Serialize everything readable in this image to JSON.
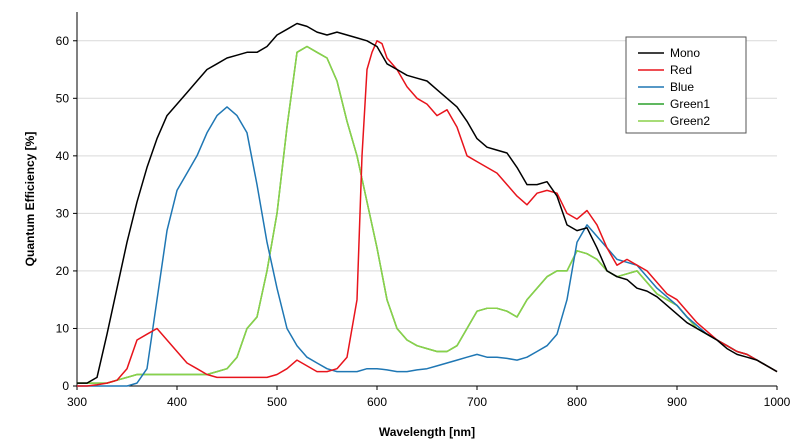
{
  "chart_data": {
    "type": "line",
    "title": "",
    "xlabel": "Wavelength [nm]",
    "ylabel": "Quantum Efficiency [%]",
    "xlim": [
      300,
      1000
    ],
    "ylim": [
      0,
      65
    ],
    "x_ticks": [
      300,
      400,
      500,
      600,
      700,
      800,
      900,
      1000
    ],
    "y_ticks": [
      0,
      10,
      20,
      30,
      40,
      50,
      60
    ],
    "grid": "horizontal",
    "legend_position": "top-right",
    "series": [
      {
        "name": "Mono",
        "color": "#000000",
        "x": [
          300,
          310,
          320,
          330,
          340,
          350,
          360,
          370,
          380,
          390,
          400,
          410,
          420,
          430,
          440,
          450,
          460,
          470,
          480,
          490,
          500,
          510,
          520,
          530,
          540,
          550,
          560,
          570,
          580,
          590,
          600,
          610,
          620,
          630,
          640,
          650,
          660,
          670,
          680,
          690,
          700,
          710,
          720,
          730,
          740,
          750,
          760,
          770,
          780,
          790,
          800,
          810,
          820,
          830,
          840,
          850,
          860,
          870,
          880,
          890,
          900,
          910,
          920,
          930,
          940,
          950,
          960,
          970,
          980,
          990,
          1000
        ],
        "values": [
          0.5,
          0.5,
          1.5,
          9,
          17,
          25,
          32,
          38,
          43,
          47,
          49,
          51,
          53,
          55,
          56,
          57,
          57.5,
          58,
          58,
          59,
          61,
          62,
          63,
          62.5,
          61.5,
          61,
          61.5,
          61,
          60.5,
          60,
          59,
          56,
          55,
          54,
          53.5,
          53,
          51.5,
          50,
          48.5,
          46,
          43,
          41.5,
          41,
          40.5,
          38,
          35,
          35,
          35.5,
          33,
          28,
          27,
          27.5,
          24,
          20,
          19,
          18.5,
          17,
          16.5,
          15.5,
          14,
          12.5,
          11,
          10,
          9,
          8,
          6.5,
          5.5,
          5,
          4.5,
          3.5,
          2.5
        ]
      },
      {
        "name": "Red",
        "color": "#e8141c",
        "x": [
          300,
          310,
          320,
          330,
          340,
          350,
          360,
          370,
          380,
          390,
          400,
          410,
          420,
          430,
          440,
          450,
          460,
          470,
          480,
          490,
          500,
          510,
          520,
          530,
          540,
          550,
          560,
          570,
          580,
          585,
          590,
          595,
          600,
          605,
          610,
          620,
          630,
          640,
          650,
          660,
          670,
          680,
          690,
          700,
          710,
          720,
          730,
          740,
          750,
          760,
          770,
          780,
          790,
          800,
          810,
          820,
          830,
          840,
          850,
          860,
          870,
          880,
          890,
          900,
          910,
          920,
          930,
          940,
          950,
          960,
          970,
          980,
          990,
          1000
        ],
        "values": [
          0,
          0,
          0.2,
          0.5,
          1,
          3,
          8,
          9,
          10,
          8,
          6,
          4,
          3,
          2,
          1.5,
          1.5,
          1.5,
          1.5,
          1.5,
          1.5,
          2,
          3,
          4.5,
          3.5,
          2.5,
          2.5,
          3,
          5,
          15,
          40,
          55,
          58,
          60,
          59.5,
          57,
          55,
          52,
          50,
          49,
          47,
          48,
          45,
          40,
          39,
          38,
          37,
          35,
          33,
          31.5,
          33.5,
          34,
          33.5,
          30,
          29,
          30.5,
          28,
          24,
          21,
          22,
          21,
          20,
          18,
          16,
          15,
          13,
          11,
          9.5,
          8,
          7,
          6,
          5.5,
          4.5,
          3.5,
          2.5
        ]
      },
      {
        "name": "Blue",
        "color": "#1f77b4",
        "x": [
          300,
          310,
          320,
          330,
          340,
          350,
          360,
          370,
          380,
          390,
          400,
          410,
          420,
          430,
          440,
          450,
          460,
          470,
          480,
          490,
          500,
          510,
          520,
          530,
          540,
          550,
          560,
          570,
          580,
          590,
          600,
          610,
          620,
          630,
          640,
          650,
          660,
          670,
          680,
          690,
          700,
          710,
          720,
          730,
          740,
          750,
          760,
          770,
          780,
          790,
          800,
          810,
          820,
          830,
          840,
          850,
          860,
          870,
          880,
          890,
          900,
          910,
          920,
          930,
          940,
          950,
          960,
          970,
          980,
          990,
          1000
        ],
        "values": [
          0,
          0,
          0,
          0,
          0,
          0,
          0.5,
          3,
          15,
          27,
          34,
          37,
          40,
          44,
          47,
          48.5,
          47,
          44,
          35,
          25,
          17,
          10,
          7,
          5,
          4,
          3,
          2.5,
          2.5,
          2.5,
          3,
          3,
          2.8,
          2.5,
          2.5,
          2.8,
          3,
          3.5,
          4,
          4.5,
          5,
          5.5,
          5,
          5,
          4.8,
          4.5,
          5,
          6,
          7,
          9,
          15,
          25,
          28,
          26,
          24,
          22,
          21.5,
          21,
          19,
          17,
          15.5,
          14,
          12,
          10.5,
          9,
          8,
          7,
          6,
          5.5,
          4.5,
          3.5,
          2.5
        ]
      },
      {
        "name": "Green1",
        "color": "#2ca02c",
        "x": [
          300,
          310,
          320,
          330,
          340,
          350,
          360,
          370,
          380,
          390,
          400,
          410,
          420,
          430,
          440,
          450,
          460,
          470,
          480,
          490,
          500,
          510,
          520,
          530,
          540,
          550,
          560,
          570,
          580,
          590,
          600,
          610,
          620,
          630,
          640,
          650,
          660,
          670,
          680,
          690,
          700,
          710,
          720,
          730,
          740,
          750,
          760,
          770,
          780,
          790,
          800,
          810,
          820,
          830,
          840,
          850,
          860,
          870,
          880,
          890,
          900,
          910,
          920,
          930,
          940,
          950,
          960,
          970,
          980,
          990,
          1000
        ],
        "values": [
          0.5,
          0.5,
          0.5,
          0.5,
          1,
          1.5,
          2,
          2,
          2,
          2,
          2,
          2,
          2,
          2,
          2.5,
          3,
          5,
          10,
          12,
          20,
          30,
          45,
          58,
          59,
          58,
          57,
          53,
          46,
          40,
          32,
          24,
          15,
          10,
          8,
          7,
          6.5,
          6,
          6,
          7,
          10,
          13,
          13.5,
          13.5,
          13,
          12,
          15,
          17,
          19,
          20,
          20,
          23.5,
          23,
          22,
          20,
          19,
          19.5,
          20,
          18,
          16,
          15,
          14,
          12,
          10,
          9,
          8,
          7,
          6,
          5.5,
          4.5,
          3.5,
          2.5
        ]
      },
      {
        "name": "Green2",
        "color": "#8ad14a",
        "x": [
          300,
          310,
          320,
          330,
          340,
          350,
          360,
          370,
          380,
          390,
          400,
          410,
          420,
          430,
          440,
          450,
          460,
          470,
          480,
          490,
          500,
          510,
          520,
          530,
          540,
          550,
          560,
          570,
          580,
          590,
          600,
          610,
          620,
          630,
          640,
          650,
          660,
          670,
          680,
          690,
          700,
          710,
          720,
          730,
          740,
          750,
          760,
          770,
          780,
          790,
          800,
          810,
          820,
          830,
          840,
          850,
          860,
          870,
          880,
          890,
          900,
          910,
          920,
          930,
          940,
          950,
          960,
          970,
          980,
          990,
          1000
        ],
        "values": [
          0.5,
          0.5,
          0.5,
          0.5,
          1,
          1.5,
          2,
          2,
          2,
          2,
          2,
          2,
          2,
          2,
          2.5,
          3,
          5,
          10,
          12,
          20,
          30,
          45,
          58,
          59,
          58,
          57,
          53,
          46,
          40,
          32,
          24,
          15,
          10,
          8,
          7,
          6.5,
          6,
          6,
          7,
          10,
          13,
          13.5,
          13.5,
          13,
          12,
          15,
          17,
          19,
          20,
          20,
          23.5,
          23,
          22,
          20,
          19,
          19.5,
          20,
          18,
          16,
          15,
          14,
          12,
          10,
          9,
          8,
          7,
          6,
          5.5,
          4.5,
          3.5,
          2.5
        ]
      }
    ]
  }
}
